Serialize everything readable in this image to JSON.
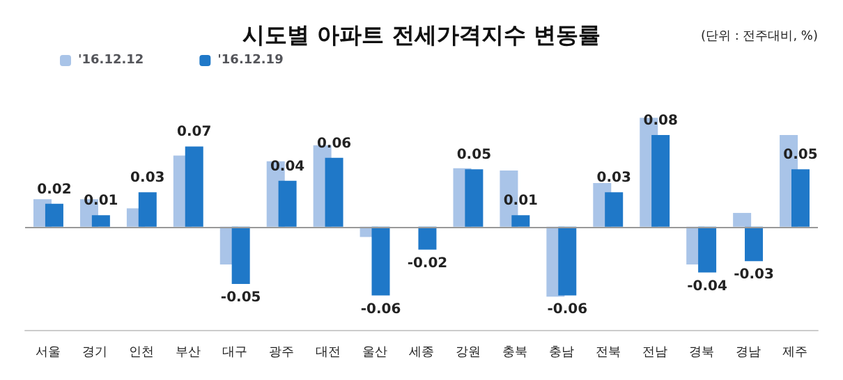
{
  "chart_data": {
    "type": "bar",
    "title": "시도별 아파트 전세가격지수 변동률",
    "annotations": [
      "(단위 : 전주대비, %)"
    ],
    "categories": [
      "서울",
      "경기",
      "인천",
      "부산",
      "대구",
      "광주",
      "대전",
      "울산",
      "세종",
      "강원",
      "충북",
      "충남",
      "전북",
      "전남",
      "경북",
      "경남",
      "제주"
    ],
    "series": [
      {
        "name": "'16.12.12",
        "color": "#a9c4e8",
        "values": [
          0.024,
          0.024,
          0.016,
          0.062,
          -0.033,
          0.057,
          0.071,
          -0.009,
          0,
          0.051,
          0.049,
          -0.061,
          0.038,
          0.095,
          -0.033,
          0.012,
          0.08
        ]
      },
      {
        "name": "'16.12.19",
        "color": "#1f78c8",
        "values": [
          0.02,
          0.01,
          0.03,
          0.07,
          -0.05,
          0.04,
          0.06,
          -0.06,
          -0.02,
          0.05,
          0.01,
          -0.06,
          0.03,
          0.08,
          -0.04,
          -0.03,
          0.05
        ],
        "value_labels": [
          "0.02",
          "0.01",
          "0.03",
          "0.07",
          "-0.05",
          "0.04",
          "0.06",
          "-0.06",
          "-0.02",
          "0.05",
          "0.01",
          "-0.06",
          "0.03",
          "0.08",
          "-0.04",
          "-0.03",
          "0.05"
        ]
      }
    ],
    "ref_lines": [
      {
        "axis": "y",
        "value": 0,
        "color": "#999999"
      }
    ],
    "legend": "top left"
  }
}
